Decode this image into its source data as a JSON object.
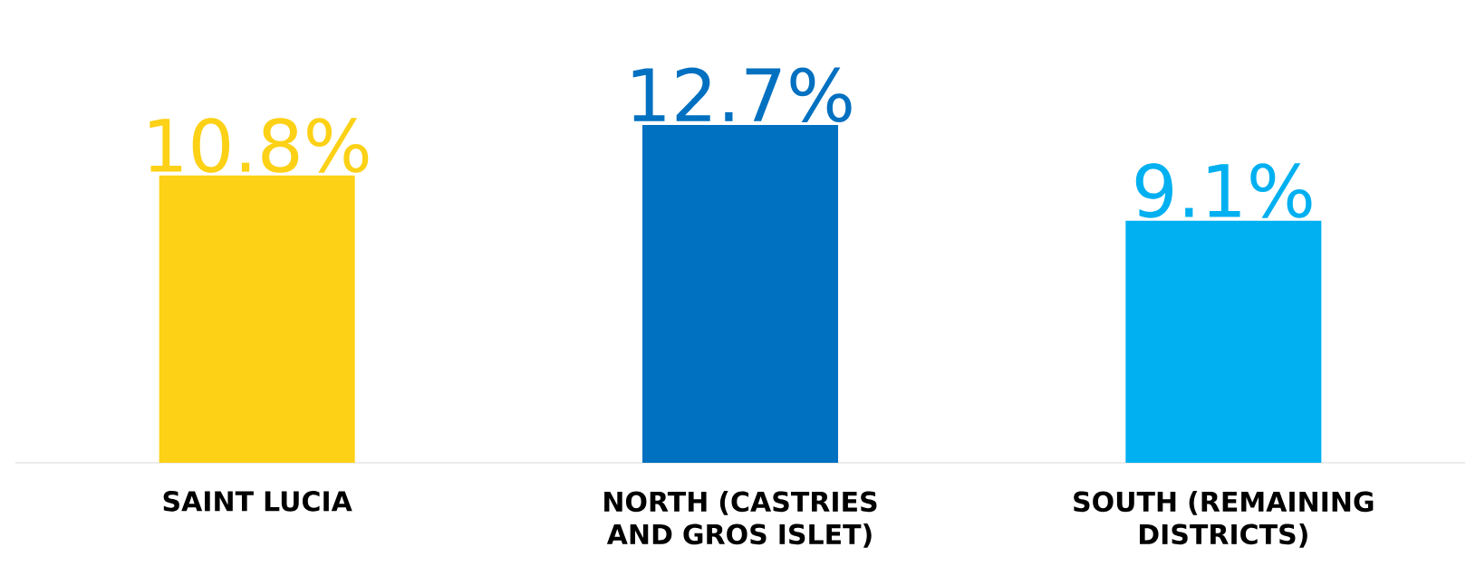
{
  "chart_data": {
    "type": "bar",
    "categories": [
      "SAINT LUCIA",
      "NORTH (CASTRIES AND GROS ISLET)",
      "SOUTH (REMAINING DISTRICTS)"
    ],
    "values": [
      10.8,
      12.7,
      9.1
    ],
    "colors": [
      "#fcd116",
      "#0070c0",
      "#00b0f0"
    ],
    "value_labels": [
      "10.8%",
      "12.7%",
      "9.1%"
    ]
  }
}
